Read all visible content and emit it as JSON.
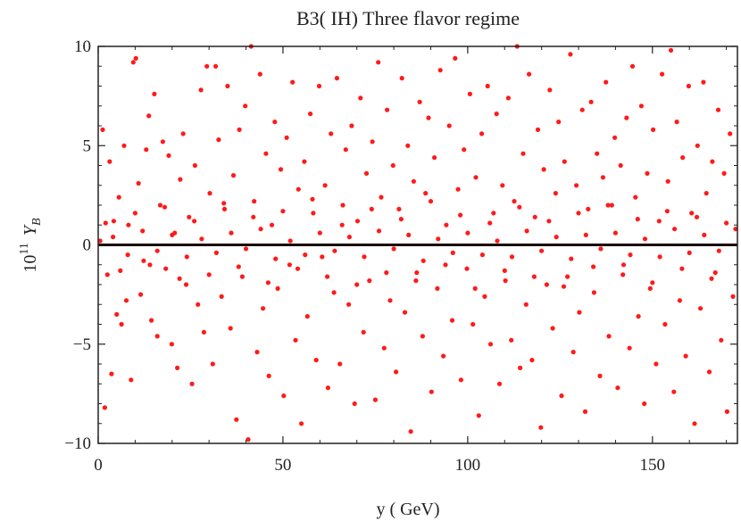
{
  "chart_data": {
    "type": "scatter",
    "title": "B3( IH) Three flavor regime",
    "xlabel": "y ( GeV)",
    "ylabel_prefix": "10",
    "ylabel_exponent": "11",
    "ylabel_symbol": "Y",
    "ylabel_subscript": "B",
    "xlim": [
      0,
      173
    ],
    "ylim": [
      -10,
      10
    ],
    "x_ticks": [
      {
        "value": 0,
        "label": "0"
      },
      {
        "value": 50,
        "label": "50"
      },
      {
        "value": 100,
        "label": "100"
      },
      {
        "value": 150,
        "label": "150"
      }
    ],
    "y_ticks": [
      {
        "value": -10,
        "label": "−10"
      },
      {
        "value": -5,
        "label": "−5"
      },
      {
        "value": 0,
        "label": "0"
      },
      {
        "value": 5,
        "label": "5"
      },
      {
        "value": 10,
        "label": "10"
      }
    ],
    "grid": false,
    "point_color": "#ff1a1a",
    "zero_line_color": "#1a0000",
    "series": [
      {
        "points": [
          [
            0.5,
            0.2
          ],
          [
            1.2,
            5.8
          ],
          [
            1.8,
            -8.2
          ],
          [
            2.5,
            -1.5
          ],
          [
            3.1,
            4.2
          ],
          [
            3.6,
            -6.5
          ],
          [
            4.2,
            1.2
          ],
          [
            5.0,
            -3.5
          ],
          [
            5.6,
            2.4
          ],
          [
            6.3,
            -4.0
          ],
          [
            7.0,
            5.0
          ],
          [
            7.6,
            -2.8
          ],
          [
            8.2,
            1.0
          ],
          [
            8.9,
            -6.8
          ],
          [
            9.5,
            9.2
          ],
          [
            10.2,
            9.4
          ],
          [
            10.9,
            3.1
          ],
          [
            11.5,
            -2.5
          ],
          [
            12.3,
            -0.8
          ],
          [
            13.0,
            4.8
          ],
          [
            13.7,
            6.5
          ],
          [
            14.4,
            -3.8
          ],
          [
            15.2,
            7.6
          ],
          [
            16.0,
            -4.6
          ],
          [
            16.8,
            2.0
          ],
          [
            17.5,
            5.2
          ],
          [
            18.3,
            -1.2
          ],
          [
            19.1,
            4.5
          ],
          [
            19.9,
            -5.0
          ],
          [
            20.7,
            0.6
          ],
          [
            21.4,
            -6.2
          ],
          [
            22.2,
            3.3
          ],
          [
            23.0,
            5.6
          ],
          [
            23.8,
            -2.0
          ],
          [
            24.6,
            1.4
          ],
          [
            25.4,
            -7.0
          ],
          [
            26.2,
            4.0
          ],
          [
            27.0,
            -3.0
          ],
          [
            27.8,
            7.8
          ],
          [
            28.6,
            -4.4
          ],
          [
            29.4,
            9.0
          ],
          [
            30.2,
            2.6
          ],
          [
            31.0,
            -6.0
          ],
          [
            31.8,
            9.0
          ],
          [
            32.6,
            5.3
          ],
          [
            33.4,
            -2.6
          ],
          [
            34.2,
            1.8
          ],
          [
            35.0,
            8.0
          ],
          [
            35.8,
            -4.2
          ],
          [
            36.6,
            3.5
          ],
          [
            37.4,
            -8.8
          ],
          [
            38.2,
            5.8
          ],
          [
            39.0,
            -1.6
          ],
          [
            39.8,
            7.0
          ],
          [
            40.6,
            -9.8
          ],
          [
            41.4,
            10.0
          ],
          [
            42.2,
            2.2
          ],
          [
            43.0,
            -5.4
          ],
          [
            43.8,
            8.6
          ],
          [
            44.6,
            -3.2
          ],
          [
            45.4,
            4.6
          ],
          [
            46.2,
            -6.6
          ],
          [
            47.0,
            1.0
          ],
          [
            47.8,
            6.2
          ],
          [
            48.6,
            -2.2
          ],
          [
            49.4,
            3.8
          ],
          [
            50.2,
            -7.6
          ],
          [
            51.0,
            5.4
          ],
          [
            51.8,
            -1.0
          ],
          [
            52.6,
            8.2
          ],
          [
            53.4,
            -4.8
          ],
          [
            54.2,
            2.8
          ],
          [
            55.0,
            -9.0
          ],
          [
            55.8,
            4.2
          ],
          [
            56.6,
            -3.6
          ],
          [
            57.4,
            6.6
          ],
          [
            58.2,
            1.6
          ],
          [
            59.0,
            -5.8
          ],
          [
            59.8,
            8.0
          ],
          [
            60.6,
            -0.6
          ],
          [
            61.4,
            3.0
          ],
          [
            62.2,
            -7.2
          ],
          [
            63.0,
            5.6
          ],
          [
            63.8,
            -2.4
          ],
          [
            64.6,
            8.4
          ],
          [
            65.4,
            -6.0
          ],
          [
            66.2,
            2.0
          ],
          [
            67.0,
            4.8
          ],
          [
            67.8,
            -3.0
          ],
          [
            68.6,
            6.0
          ],
          [
            69.4,
            -8.0
          ],
          [
            70.2,
            1.2
          ],
          [
            71.0,
            7.4
          ],
          [
            71.8,
            -4.4
          ],
          [
            72.6,
            3.6
          ],
          [
            73.4,
            -1.8
          ],
          [
            74.2,
            5.2
          ],
          [
            75.0,
            -7.8
          ],
          [
            75.8,
            9.2
          ],
          [
            76.6,
            2.4
          ],
          [
            77.4,
            -5.2
          ],
          [
            78.2,
            6.8
          ],
          [
            79.0,
            -2.8
          ],
          [
            79.8,
            4.0
          ],
          [
            80.6,
            -6.4
          ],
          [
            81.4,
            1.8
          ],
          [
            82.2,
            8.4
          ],
          [
            83.0,
            -3.4
          ],
          [
            83.8,
            5.0
          ],
          [
            84.6,
            -9.4
          ],
          [
            85.4,
            3.2
          ],
          [
            86.2,
            -1.4
          ],
          [
            87.0,
            7.2
          ],
          [
            87.8,
            -4.6
          ],
          [
            88.6,
            2.6
          ],
          [
            89.4,
            6.4
          ],
          [
            90.2,
            -7.4
          ],
          [
            91.0,
            4.4
          ],
          [
            91.8,
            -2.2
          ],
          [
            92.6,
            8.8
          ],
          [
            93.4,
            -5.6
          ],
          [
            94.2,
            1.0
          ],
          [
            95.0,
            6.0
          ],
          [
            95.8,
            -3.8
          ],
          [
            96.6,
            9.4
          ],
          [
            97.4,
            2.8
          ],
          [
            98.2,
            -6.8
          ],
          [
            99.0,
            4.8
          ],
          [
            99.8,
            -1.2
          ],
          [
            100.6,
            7.6
          ],
          [
            101.4,
            -4.0
          ],
          [
            102.2,
            3.4
          ],
          [
            103.0,
            -8.6
          ],
          [
            103.8,
            5.6
          ],
          [
            104.6,
            -2.6
          ],
          [
            105.4,
            8.0
          ],
          [
            106.2,
            -5.0
          ],
          [
            107.0,
            1.6
          ],
          [
            107.8,
            6.6
          ],
          [
            108.6,
            -7.0
          ],
          [
            109.4,
            3.0
          ],
          [
            110.2,
            -1.8
          ],
          [
            111.0,
            7.4
          ],
          [
            111.8,
            -4.8
          ],
          [
            112.6,
            2.2
          ],
          [
            113.4,
            10.0
          ],
          [
            114.2,
            -6.2
          ],
          [
            115.0,
            4.6
          ],
          [
            115.8,
            -3.0
          ],
          [
            116.6,
            8.6
          ],
          [
            117.4,
            -5.8
          ],
          [
            118.2,
            1.4
          ],
          [
            119.0,
            5.8
          ],
          [
            119.8,
            -9.2
          ],
          [
            120.6,
            3.8
          ],
          [
            121.4,
            -2.0
          ],
          [
            122.2,
            7.8
          ],
          [
            123.0,
            -4.2
          ],
          [
            123.8,
            2.6
          ],
          [
            124.6,
            6.2
          ],
          [
            125.4,
            -7.6
          ],
          [
            126.2,
            4.2
          ],
          [
            127.0,
            -1.6
          ],
          [
            127.8,
            9.6
          ],
          [
            128.6,
            -5.4
          ],
          [
            129.4,
            3.0
          ],
          [
            130.2,
            -3.4
          ],
          [
            131.0,
            6.8
          ],
          [
            131.8,
            -8.4
          ],
          [
            132.6,
            1.8
          ],
          [
            133.4,
            7.2
          ],
          [
            134.2,
            -2.4
          ],
          [
            135.0,
            4.6
          ],
          [
            135.8,
            -6.6
          ],
          [
            136.6,
            3.4
          ],
          [
            137.4,
            8.2
          ],
          [
            138.2,
            -4.6
          ],
          [
            139.0,
            2.0
          ],
          [
            139.8,
            5.4
          ],
          [
            140.6,
            -7.2
          ],
          [
            141.4,
            4.0
          ],
          [
            142.2,
            -1.0
          ],
          [
            143.0,
            6.4
          ],
          [
            143.8,
            -5.2
          ],
          [
            144.6,
            9.0
          ],
          [
            145.4,
            2.4
          ],
          [
            146.2,
            -3.6
          ],
          [
            147.0,
            7.0
          ],
          [
            147.8,
            -8.0
          ],
          [
            148.6,
            3.6
          ],
          [
            149.4,
            -2.2
          ],
          [
            150.2,
            5.8
          ],
          [
            151.0,
            -6.0
          ],
          [
            151.8,
            1.2
          ],
          [
            152.6,
            8.6
          ],
          [
            153.4,
            -4.0
          ],
          [
            154.2,
            3.2
          ],
          [
            155.0,
            9.8
          ],
          [
            155.8,
            -7.4
          ],
          [
            156.6,
            6.2
          ],
          [
            157.4,
            -2.8
          ],
          [
            158.2,
            4.4
          ],
          [
            159.0,
            -5.6
          ],
          [
            159.8,
            8.0
          ],
          [
            160.6,
            1.6
          ],
          [
            161.4,
            -9.0
          ],
          [
            162.2,
            5.0
          ],
          [
            163.0,
            -3.2
          ],
          [
            163.8,
            8.2
          ],
          [
            164.6,
            2.6
          ],
          [
            165.4,
            -6.4
          ],
          [
            166.2,
            4.2
          ],
          [
            167.0,
            -1.4
          ],
          [
            167.8,
            6.8
          ],
          [
            168.6,
            -4.8
          ],
          [
            169.4,
            3.6
          ],
          [
            170.2,
            -8.4
          ],
          [
            171.0,
            5.6
          ],
          [
            171.8,
            -2.6
          ],
          [
            172.5,
            0.8
          ],
          [
            4.0,
            0.4
          ],
          [
            8.0,
            -0.5
          ],
          [
            12.0,
            0.7
          ],
          [
            16.0,
            -0.3
          ],
          [
            20.0,
            0.5
          ],
          [
            24.0,
            -0.6
          ],
          [
            28.0,
            0.3
          ],
          [
            32.0,
            -0.4
          ],
          [
            36.0,
            0.6
          ],
          [
            40.0,
            -0.2
          ],
          [
            44.0,
            0.8
          ],
          [
            48.0,
            -0.7
          ],
          [
            52.0,
            0.2
          ],
          [
            56.0,
            -0.5
          ],
          [
            60.0,
            0.6
          ],
          [
            64.0,
            -0.3
          ],
          [
            68.0,
            0.4
          ],
          [
            72.0,
            -0.6
          ],
          [
            76.0,
            0.7
          ],
          [
            80.0,
            -0.2
          ],
          [
            84.0,
            0.5
          ],
          [
            88.0,
            -0.8
          ],
          [
            92.0,
            0.3
          ],
          [
            96.0,
            -0.4
          ],
          [
            100.0,
            0.6
          ],
          [
            104.0,
            -0.5
          ],
          [
            108.0,
            0.2
          ],
          [
            112.0,
            -0.6
          ],
          [
            116.0,
            0.7
          ],
          [
            120.0,
            -0.3
          ],
          [
            124.0,
            0.4
          ],
          [
            128.0,
            -0.7
          ],
          [
            132.0,
            0.5
          ],
          [
            136.0,
            -0.2
          ],
          [
            140.0,
            0.6
          ],
          [
            144.0,
            -0.5
          ],
          [
            148.0,
            0.3
          ],
          [
            152.0,
            -0.6
          ],
          [
            156.0,
            0.8
          ],
          [
            160.0,
            -0.4
          ],
          [
            164.0,
            0.5
          ],
          [
            168.0,
            -0.3
          ],
          [
            2.0,
            1.1
          ],
          [
            6.0,
            -1.3
          ],
          [
            10.0,
            1.6
          ],
          [
            14.0,
            -1.0
          ],
          [
            18.0,
            1.9
          ],
          [
            22.0,
            -1.7
          ],
          [
            26.0,
            1.2
          ],
          [
            30.0,
            -1.5
          ],
          [
            34.0,
            2.1
          ],
          [
            38.0,
            -1.1
          ],
          [
            42.0,
            1.4
          ],
          [
            46.0,
            -1.9
          ],
          [
            50.0,
            1.7
          ],
          [
            54.0,
            -1.2
          ],
          [
            58.0,
            2.3
          ],
          [
            62.0,
            -1.6
          ],
          [
            66.0,
            1.0
          ],
          [
            70.0,
            -2.0
          ],
          [
            74.0,
            1.8
          ],
          [
            78.0,
            -1.4
          ],
          [
            82.0,
            1.3
          ],
          [
            86.0,
            -1.8
          ],
          [
            90.0,
            2.2
          ],
          [
            94.0,
            -1.0
          ],
          [
            98.0,
            1.5
          ],
          [
            102.0,
            -2.2
          ],
          [
            106.0,
            1.1
          ],
          [
            110.0,
            -1.3
          ],
          [
            114.0,
            1.9
          ],
          [
            118.0,
            -1.6
          ],
          [
            122.0,
            1.2
          ],
          [
            126.0,
            -2.1
          ],
          [
            130.0,
            1.6
          ],
          [
            134.0,
            -1.1
          ],
          [
            138.0,
            2.0
          ],
          [
            142.0,
            -1.5
          ],
          [
            146.0,
            1.3
          ],
          [
            150.0,
            -1.9
          ],
          [
            154.0,
            1.7
          ],
          [
            158.0,
            -1.2
          ],
          [
            162.0,
            1.4
          ],
          [
            166.0,
            -1.7
          ],
          [
            170.0,
            1.1
          ]
        ]
      }
    ]
  }
}
